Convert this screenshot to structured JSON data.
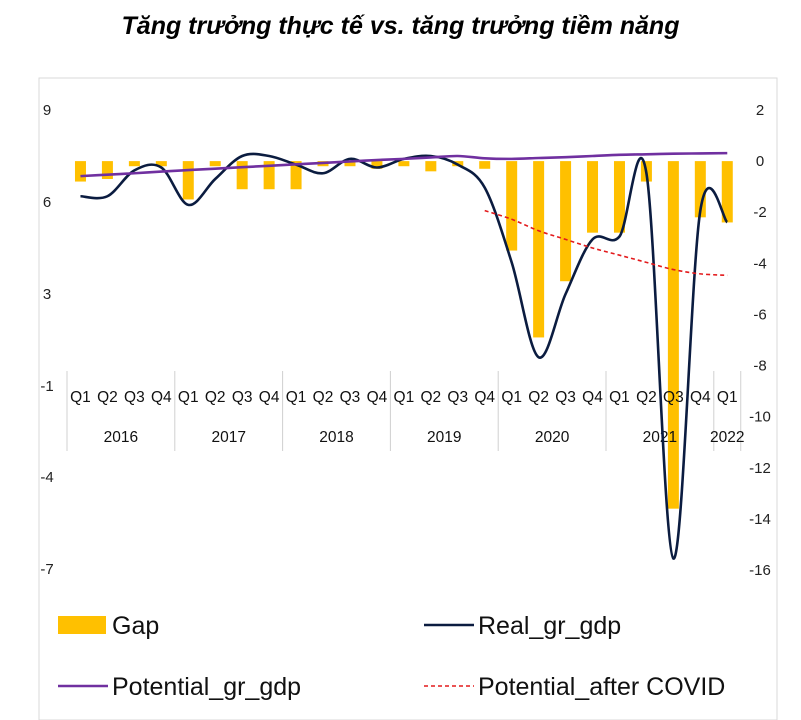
{
  "chart_data": {
    "type": "bar+line",
    "title": "Tăng trưởng thực tế vs. tăng trưởng tiềm năng",
    "quarters": [
      "Q1",
      "Q2",
      "Q3",
      "Q4",
      "Q1",
      "Q2",
      "Q3",
      "Q4",
      "Q1",
      "Q2",
      "Q3",
      "Q4",
      "Q1",
      "Q2",
      "Q3",
      "Q4",
      "Q1",
      "Q2",
      "Q3",
      "Q4",
      "Q1",
      "Q2",
      "Q3",
      "Q4",
      "Q1"
    ],
    "years": [
      {
        "label": "2016",
        "start": 0,
        "end": 4
      },
      {
        "label": "2017",
        "start": 4,
        "end": 8
      },
      {
        "label": "2018",
        "start": 8,
        "end": 12
      },
      {
        "label": "2019",
        "start": 12,
        "end": 16
      },
      {
        "label": "2020",
        "start": 16,
        "end": 20
      },
      {
        "label": "2021",
        "start": 20,
        "end": 24
      },
      {
        "label": "2022",
        "start": 24,
        "end": 25
      }
    ],
    "left_axis": {
      "ticks": [
        9,
        6,
        3,
        -1,
        -4,
        -7
      ],
      "ylim": [
        -7,
        9
      ]
    },
    "right_axis": {
      "ticks": [
        2,
        0,
        -2,
        -4,
        -6,
        -8,
        -10,
        -12,
        -14,
        -16
      ],
      "ylim": [
        -16,
        2
      ]
    },
    "series": [
      {
        "name": "Gap",
        "type": "bar",
        "axis": "right",
        "color": "#FFC000",
        "values": [
          -0.8,
          -0.7,
          -0.2,
          -0.2,
          -1.5,
          -0.2,
          -1.1,
          -1.1,
          -1.1,
          -0.2,
          -0.2,
          -0.3,
          -0.2,
          -0.4,
          -0.2,
          -0.3,
          -3.5,
          -6.9,
          -4.7,
          -2.8,
          -2.8,
          -0.8,
          -13.6,
          -2.2,
          -2.4
        ]
      },
      {
        "name": "Real_gr_gdp",
        "type": "line",
        "axis": "left",
        "color": "#0B1C40",
        "values": [
          6.0,
          6.0,
          6.9,
          7.0,
          5.7,
          6.6,
          7.4,
          7.4,
          7.1,
          6.8,
          7.3,
          7.0,
          7.3,
          7.4,
          7.1,
          6.3,
          3.7,
          0.4,
          2.6,
          4.5,
          4.6,
          6.8,
          -6.6,
          5.5,
          5.1
        ]
      },
      {
        "name": "Potential_gr_gdp",
        "type": "line",
        "axis": "left",
        "color": "#7030A0",
        "values": [
          6.7,
          6.75,
          6.8,
          6.86,
          6.91,
          6.96,
          7.01,
          7.06,
          7.11,
          7.16,
          7.21,
          7.26,
          7.3,
          7.35,
          7.4,
          7.32,
          7.3,
          7.33,
          7.36,
          7.4,
          7.44,
          7.46,
          7.48,
          7.49,
          7.5
        ]
      },
      {
        "name": "Potential_after COVID",
        "type": "line",
        "axis": "left",
        "color": "#E31A1C",
        "dash": "4,3",
        "x_start": 15,
        "values": [
          5.5,
          5.2,
          4.8,
          4.5,
          4.2,
          3.95,
          3.7,
          3.45,
          3.3,
          3.25
        ]
      }
    ],
    "legend": [
      {
        "name": "Gap",
        "kind": "bar",
        "color": "#FFC000"
      },
      {
        "name": "Real_gr_gdp",
        "kind": "line",
        "color": "#0B1C40"
      },
      {
        "name": "Potential_gr_gdp",
        "kind": "line",
        "color": "#7030A0"
      },
      {
        "name": "Potential_after COVID",
        "kind": "dash",
        "color": "#E31A1C"
      }
    ],
    "legend_position": "bottom",
    "grid": false
  }
}
